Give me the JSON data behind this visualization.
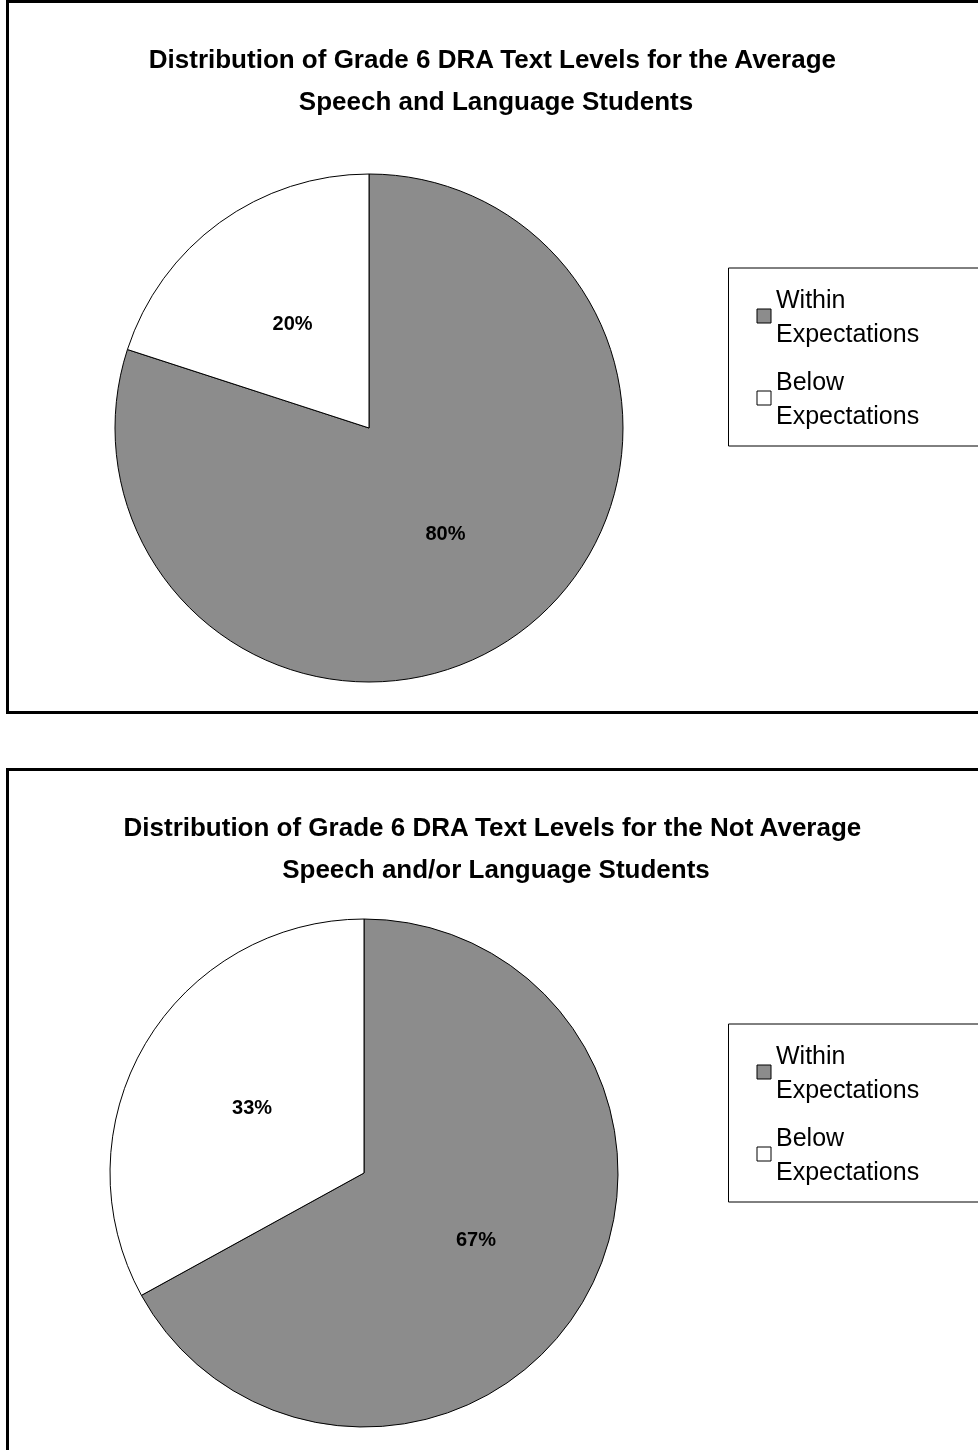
{
  "chart_data": [
    {
      "type": "pie",
      "title": "Distribution of Grade 6 DRA Text Levels for the Average Speech and Language Students",
      "categories": [
        "Within Expectations",
        "Below Expectations"
      ],
      "values": [
        80,
        20
      ],
      "colors": [
        "#8c8c8c",
        "#ffffff"
      ],
      "value_labels": [
        "80%",
        "20%"
      ],
      "legend": "right"
    },
    {
      "type": "pie",
      "title": "Distribution of Grade 6 DRA Text Levels for the Not Average Speech and/or Language Students",
      "categories": [
        "Within Expectations",
        "Below Expectations"
      ],
      "values": [
        67,
        33
      ],
      "colors": [
        "#8c8c8c",
        "#ffffff"
      ],
      "value_labels": [
        "67%",
        "33%"
      ],
      "legend": "right"
    }
  ]
}
